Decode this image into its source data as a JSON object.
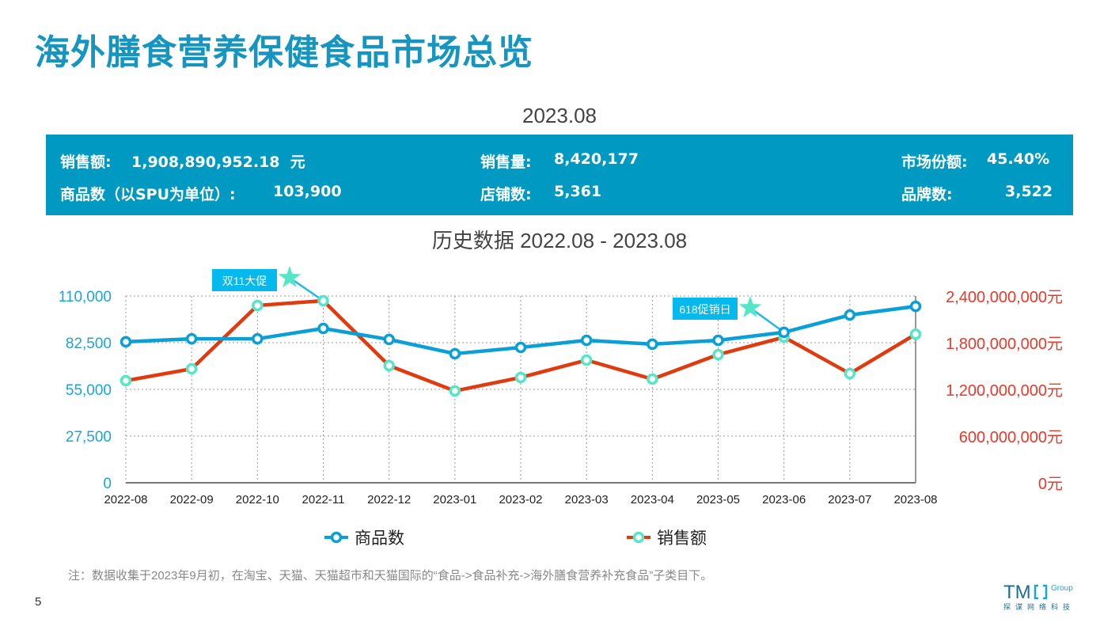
{
  "title": "海外膳食营养保健食品市场总览",
  "period": "2023.08",
  "kpi": {
    "sales_label": "销售额:",
    "sales_value": "1,908,890,952.18  元",
    "volume_label": "销售量:",
    "volume_value": "8,420,177",
    "share_label": "市场份额:",
    "share_value": "45.40%",
    "spu_label": "商品数（以SPU为单位）:",
    "spu_value": "103,900",
    "stores_label": "店铺数:",
    "stores_value": "5,361",
    "brands_label": "品牌数:",
    "brands_value": "3,522"
  },
  "history_title": "历史数据 2022.08 - 2023.08",
  "chart_data": {
    "type": "line",
    "categories": [
      "2022-08",
      "2022-09",
      "2022-10",
      "2022-11",
      "2022-12",
      "2023-01",
      "2023-02",
      "2023-03",
      "2023-04",
      "2023-05",
      "2023-06",
      "2023-07",
      "2023-08"
    ],
    "series": [
      {
        "name": "商品数",
        "axis": "left",
        "color": "#0a9fd6",
        "values": [
          83000,
          84800,
          84800,
          90900,
          84400,
          76000,
          79700,
          83900,
          81600,
          83900,
          88600,
          98800,
          103900
        ]
      },
      {
        "name": "销售额",
        "axis": "right",
        "color": "#e03a0e",
        "marker_color": "#55e6c8",
        "values": [
          1312000000,
          1464000000,
          2278000000,
          2339000000,
          1505000000,
          1180000000,
          1353000000,
          1576000000,
          1332000000,
          1647000000,
          1871000000,
          1403000000,
          1908890952
        ]
      }
    ],
    "left_axis": {
      "ylim": [
        0,
        110000
      ],
      "ticks": [
        "0",
        "27,500",
        "55,000",
        "82,500",
        "110,000"
      ],
      "color": "#1aa6d8"
    },
    "right_axis": {
      "ylim": [
        0,
        2400000000
      ],
      "ticks": [
        "0元",
        "600,000,000元",
        "1,200,000,000元",
        "1,800,000,000元",
        "2,400,000,000元"
      ],
      "color": "#e8392a"
    },
    "grid": true,
    "legend": "bottom",
    "annotations": [
      {
        "text": "双11大促",
        "category": "2022-11"
      },
      {
        "text": "618促销日",
        "category": "2023-06"
      }
    ]
  },
  "note": "注：数据收集于2023年9月初，在淘宝、天猫、天猫超市和天猫国际的“食品->食品补充->海外膳食营养补充食品”子类目下。",
  "page_number": "5",
  "logo": {
    "text": "TMO Group",
    "subtitle": "探谋网络科技"
  }
}
